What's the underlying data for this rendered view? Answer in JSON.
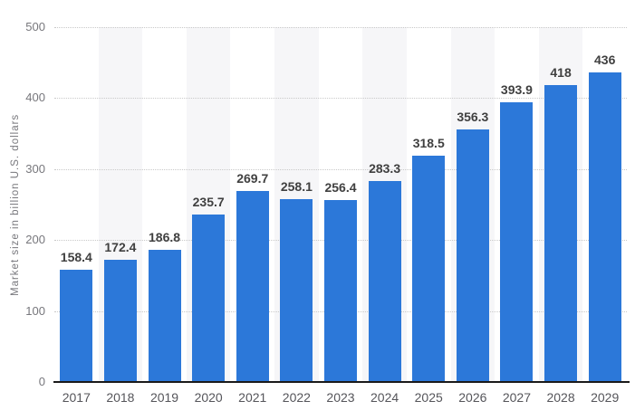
{
  "chart_data": {
    "type": "bar",
    "title": "",
    "xlabel": "",
    "ylabel": "Market size in billion U.S. dollars",
    "categories": [
      "2017",
      "2018",
      "2019",
      "2020",
      "2021",
      "2022",
      "2023",
      "2024",
      "2025",
      "2026",
      "2027",
      "2028",
      "2029"
    ],
    "values": [
      158.4,
      172.4,
      186.8,
      235.7,
      269.7,
      258.1,
      256.4,
      283.3,
      318.5,
      356.3,
      393.9,
      418,
      436
    ],
    "value_labels": [
      "158.4",
      "172.4",
      "186.8",
      "235.7",
      "269.7",
      "258.1",
      "256.4",
      "283.3",
      "318.5",
      "356.3",
      "393.9",
      "418",
      "436"
    ],
    "ylim": [
      0,
      500
    ],
    "yticks": [
      0,
      100,
      200,
      300,
      400,
      500
    ],
    "ytick_labels": [
      "0",
      "100",
      "200",
      "300",
      "400",
      "500"
    ],
    "grid": "horizontal-dotted",
    "legend": "none",
    "plot_bands": "alternating category columns shaded, starting at 2018",
    "colors": {
      "bar": "#2c78d9",
      "band": "#f6f6f8",
      "gridline": "#c9c9c9",
      "axis_line": "#1a1a1a",
      "ytick_text": "#77777c",
      "xtick_text": "#55555a",
      "value_text": "#404040",
      "background": "#ffffff"
    }
  }
}
